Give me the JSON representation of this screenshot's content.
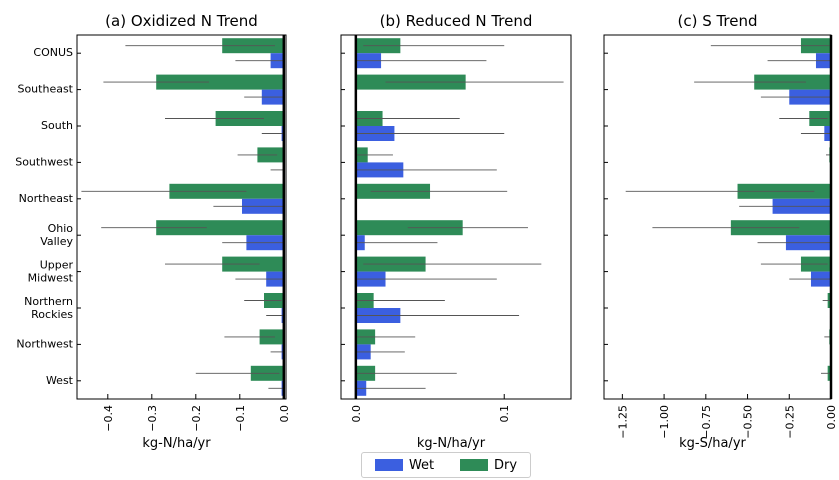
{
  "chart_data": {
    "type": "bar",
    "orientation": "horizontal",
    "categories": [
      "CONUS",
      "Southeast",
      "South",
      "Southwest",
      "Northeast",
      "Ohio Valley",
      "Upper Midwest",
      "Northern Rockies",
      "Northwest",
      "West"
    ],
    "legend": {
      "position": "bottom-center",
      "entries": [
        {
          "name": "Wet",
          "color": "#3b5fe0"
        },
        {
          "name": "Dry",
          "color": "#2e8b57"
        }
      ]
    },
    "panels": [
      {
        "title": "(a) Oxidized N Trend",
        "xlabel": "kg-N/ha/yr",
        "xlim": [
          -0.47,
          0.005
        ],
        "xticks": [
          -0.4,
          -0.3,
          -0.2,
          -0.1,
          0.0
        ],
        "xtick_labels": [
          "−0.4",
          "−0.3",
          "−0.2",
          "−0.1",
          "0.0"
        ],
        "series": [
          {
            "name": "Dry",
            "values": [
              -0.14,
              -0.29,
              -0.155,
              -0.06,
              -0.26,
              -0.29,
              -0.14,
              -0.045,
              -0.055,
              -0.075
            ],
            "err_low": [
              -0.36,
              -0.41,
              -0.27,
              -0.105,
              -0.46,
              -0.415,
              -0.27,
              -0.09,
              -0.135,
              -0.2
            ],
            "err_high": [
              -0.02,
              -0.17,
              -0.045,
              -0.015,
              -0.085,
              -0.175,
              -0.055,
              -0.005,
              -0.02,
              -0.01
            ]
          },
          {
            "name": "Wet",
            "values": [
              -0.03,
              -0.05,
              -0.005,
              -0.002,
              -0.095,
              -0.085,
              -0.04,
              -0.005,
              -0.005,
              -0.005
            ],
            "err_low": [
              -0.11,
              -0.09,
              -0.05,
              -0.03,
              -0.16,
              -0.14,
              -0.11,
              -0.04,
              -0.03,
              -0.035
            ],
            "err_high": [
              0.0,
              0.0,
              0.0,
              0.0,
              0.0,
              0.0,
              0.0,
              0.0,
              0.0,
              0.0
            ]
          }
        ]
      },
      {
        "title": "(b) Reduced N Trend",
        "xlabel": "kg-N/ha/yr",
        "xlim": [
          -0.01,
          0.145
        ],
        "xticks": [
          0.0,
          0.1
        ],
        "xtick_labels": [
          "0.0",
          "0.1"
        ],
        "series": [
          {
            "name": "Dry",
            "values": [
              0.03,
              0.074,
              0.018,
              0.008,
              0.05,
              0.072,
              0.047,
              0.012,
              0.013,
              0.013
            ],
            "err_low": [
              0.005,
              0.02,
              0.0,
              0.0,
              0.01,
              0.035,
              0.005,
              0.0,
              0.0,
              0.0
            ],
            "err_high": [
              0.1,
              0.14,
              0.07,
              0.025,
              0.102,
              0.116,
              0.125,
              0.06,
              0.04,
              0.068
            ]
          },
          {
            "name": "Wet",
            "values": [
              0.017,
              0.0,
              0.026,
              0.032,
              0.0,
              0.006,
              0.02,
              0.03,
              0.01,
              0.007
            ],
            "err_low": [
              0.0,
              0.0,
              0.0,
              0.0,
              0.0,
              0.0,
              0.0,
              0.0,
              0.0,
              0.0
            ],
            "err_high": [
              0.088,
              0.0,
              0.1,
              0.095,
              0.0,
              0.055,
              0.095,
              0.11,
              0.033,
              0.047
            ]
          }
        ]
      },
      {
        "title": "(c) S Trend",
        "xlabel": "kg-S/ha/yr",
        "xlim": [
          -1.36,
          0.0
        ],
        "xticks": [
          -1.25,
          -1.0,
          -0.75,
          -0.5,
          -0.25,
          0.0
        ],
        "xtick_labels": [
          "−1.25",
          "−1.00",
          "−0.75",
          "−0.50",
          "−0.25",
          "0.00"
        ],
        "series": [
          {
            "name": "Dry",
            "values": [
              -0.18,
              -0.46,
              -0.13,
              -0.01,
              -0.56,
              -0.6,
              -0.18,
              -0.02,
              -0.01,
              -0.02
            ],
            "err_low": [
              -0.72,
              -0.82,
              -0.31,
              -0.03,
              -1.23,
              -1.07,
              -0.42,
              -0.05,
              -0.04,
              -0.06
            ],
            "err_high": [
              -0.01,
              -0.15,
              -0.02,
              0.0,
              -0.1,
              -0.19,
              -0.02,
              0.0,
              0.0,
              0.0
            ]
          },
          {
            "name": "Wet",
            "values": [
              -0.09,
              -0.25,
              -0.04,
              0.0,
              -0.35,
              -0.27,
              -0.12,
              0.0,
              0.0,
              0.0
            ],
            "err_low": [
              -0.38,
              -0.42,
              -0.18,
              0.0,
              -0.55,
              -0.44,
              -0.25,
              0.0,
              0.0,
              0.0
            ],
            "err_high": [
              0.0,
              0.0,
              0.0,
              0.0,
              0.0,
              0.0,
              0.0,
              0.0,
              0.0,
              0.0
            ]
          }
        ]
      }
    ]
  }
}
